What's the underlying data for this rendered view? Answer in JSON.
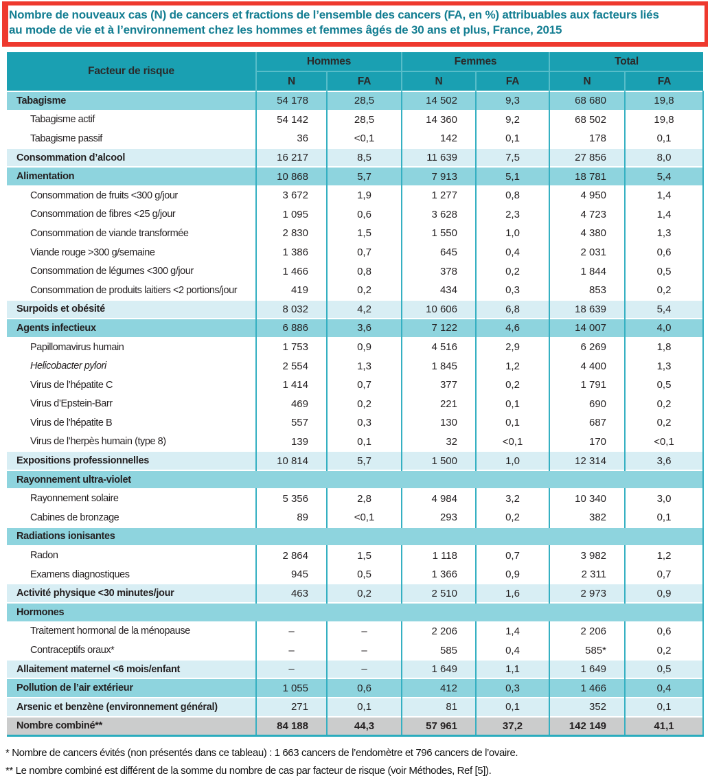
{
  "title": {
    "lines": [
      "Nombre de nouveaux cas (N) de cancers et fractions de l’ensemble des cancers (FA, en %) attribuables aux facteurs liés",
      "au mode de vie et à l’environnement chez les hommes et femmes âgés de 30 ans et plus, France, 2015"
    ]
  },
  "table": {
    "header": {
      "factor_label": "Facteur de risque",
      "groups": [
        "Hommes",
        "Femmes",
        "Total"
      ],
      "subcols": [
        "N",
        "FA"
      ]
    },
    "rows": [
      {
        "label": "Tabagisme",
        "type": "category",
        "shade": "dark",
        "values": [
          "54 178",
          "28,5",
          "14 502",
          "9,3",
          "68 680",
          "19,8"
        ]
      },
      {
        "label": "Tabagisme actif",
        "type": "sub",
        "shade": "white",
        "values": [
          "54 142",
          "28,5",
          "14 360",
          "9,2",
          "68 502",
          "19,8"
        ]
      },
      {
        "label": "Tabagisme passif",
        "type": "sub",
        "shade": "white",
        "values": [
          "36",
          "<0,1",
          "142",
          "0,1",
          "178",
          "0,1"
        ]
      },
      {
        "label": "Consommation d’alcool",
        "type": "category",
        "shade": "light",
        "values": [
          "16 217",
          "8,5",
          "11 639",
          "7,5",
          "27 856",
          "8,0"
        ]
      },
      {
        "label": "Alimentation",
        "type": "category",
        "shade": "dark",
        "values": [
          "10 868",
          "5,7",
          "7 913",
          "5,1",
          "18 781",
          "5,4"
        ]
      },
      {
        "label": "Consommation de fruits <300 g/jour",
        "type": "sub",
        "shade": "white",
        "values": [
          "3 672",
          "1,9",
          "1 277",
          "0,8",
          "4 950",
          "1,4"
        ]
      },
      {
        "label": "Consommation de fibres <25 g/jour",
        "type": "sub",
        "shade": "white",
        "values": [
          "1 095",
          "0,6",
          "3 628",
          "2,3",
          "4 723",
          "1,4"
        ]
      },
      {
        "label": "Consommation de viande transformée",
        "type": "sub",
        "shade": "white",
        "values": [
          "2 830",
          "1,5",
          "1 550",
          "1,0",
          "4 380",
          "1,3"
        ]
      },
      {
        "label": "Viande rouge >300 g/semaine",
        "type": "sub",
        "shade": "white",
        "values": [
          "1 386",
          "0,7",
          "645",
          "0,4",
          "2 031",
          "0,6"
        ]
      },
      {
        "label": "Consommation de légumes <300 g/jour",
        "type": "sub",
        "shade": "white",
        "values": [
          "1 466",
          "0,8",
          "378",
          "0,2",
          "1 844",
          "0,5"
        ]
      },
      {
        "label": "Consommation de produits laitiers <2 portions/jour",
        "type": "sub",
        "shade": "white",
        "values": [
          "419",
          "0,2",
          "434",
          "0,3",
          "853",
          "0,2"
        ]
      },
      {
        "label": "Surpoids et obésité",
        "type": "category",
        "shade": "light",
        "values": [
          "8 032",
          "4,2",
          "10 606",
          "6,8",
          "18 639",
          "5,4"
        ]
      },
      {
        "label": "Agents infectieux",
        "type": "category",
        "shade": "dark",
        "values": [
          "6 886",
          "3,6",
          "7 122",
          "4,6",
          "14 007",
          "4,0"
        ]
      },
      {
        "label": "Papillomavirus humain",
        "type": "sub",
        "shade": "white",
        "values": [
          "1 753",
          "0,9",
          "4 516",
          "2,9",
          "6 269",
          "1,8"
        ]
      },
      {
        "label": "Helicobacter pylori",
        "type": "sub",
        "shade": "white",
        "italic": true,
        "values": [
          "2 554",
          "1,3",
          "1 845",
          "1,2",
          "4 400",
          "1,3"
        ]
      },
      {
        "label": "Virus de l’hépatite C",
        "type": "sub",
        "shade": "white",
        "values": [
          "1 414",
          "0,7",
          "377",
          "0,2",
          "1 791",
          "0,5"
        ]
      },
      {
        "label": "Virus d’Epstein-Barr",
        "type": "sub",
        "shade": "white",
        "values": [
          "469",
          "0,2",
          "221",
          "0,1",
          "690",
          "0,2"
        ]
      },
      {
        "label": "Virus de l’hépatite B",
        "type": "sub",
        "shade": "white",
        "values": [
          "557",
          "0,3",
          "130",
          "0,1",
          "687",
          "0,2"
        ]
      },
      {
        "label": "Virus de l’herpès humain (type 8)",
        "type": "sub",
        "shade": "white",
        "values": [
          "139",
          "0,1",
          "32",
          "<0,1",
          "170",
          "<0,1"
        ]
      },
      {
        "label": "Expositions professionnelles",
        "type": "category",
        "shade": "light",
        "values": [
          "10 814",
          "5,7",
          "1 500",
          "1,0",
          "12 314",
          "3,6"
        ]
      },
      {
        "label": "Rayonnement ultra-violet",
        "type": "section",
        "shade": "dark"
      },
      {
        "label": "Rayonnement solaire",
        "type": "sub",
        "shade": "white",
        "values": [
          "5 356",
          "2,8",
          "4 984",
          "3,2",
          "10 340",
          "3,0"
        ]
      },
      {
        "label": "Cabines de bronzage",
        "type": "sub",
        "shade": "white",
        "values": [
          "89",
          "<0,1",
          "293",
          "0,2",
          "382",
          "0,1"
        ]
      },
      {
        "label": "Radiations ionisantes",
        "type": "section",
        "shade": "dark"
      },
      {
        "label": "Radon",
        "type": "sub",
        "shade": "white",
        "values": [
          "2 864",
          "1,5",
          "1 118",
          "0,7",
          "3 982",
          "1,2"
        ]
      },
      {
        "label": "Examens diagnostiques",
        "type": "sub",
        "shade": "white",
        "values": [
          "945",
          "0,5",
          "1 366",
          "0,9",
          "2 311",
          "0,7"
        ]
      },
      {
        "label": "Activité physique <30 minutes/jour",
        "type": "category",
        "shade": "light",
        "values": [
          "463",
          "0,2",
          "2 510",
          "1,6",
          "2 973",
          "0,9"
        ]
      },
      {
        "label": "Hormones",
        "type": "section",
        "shade": "dark"
      },
      {
        "label": "Traitement hormonal de la ménopause",
        "type": "sub",
        "shade": "white",
        "values": [
          "–",
          "–",
          "2 206",
          "1,4",
          "2 206",
          "0,6"
        ]
      },
      {
        "label": "Contraceptifs oraux*",
        "type": "sub",
        "shade": "white",
        "values": [
          "–",
          "–",
          "585",
          "0,4",
          "585*",
          "0,2"
        ]
      },
      {
        "label": "Allaitement maternel <6 mois/enfant",
        "type": "category",
        "shade": "light",
        "values": [
          "–",
          "–",
          "1 649",
          "1,1",
          "1 649",
          "0,5"
        ]
      },
      {
        "label": "Pollution de l’air extérieur",
        "type": "category",
        "shade": "dark",
        "values": [
          "1 055",
          "0,6",
          "412",
          "0,3",
          "1 466",
          "0,4"
        ]
      },
      {
        "label": "Arsenic et benzène (environnement général)",
        "type": "category",
        "shade": "light",
        "values": [
          "271",
          "0,1",
          "81",
          "0,1",
          "352",
          "0,1"
        ]
      },
      {
        "label": "Nombre combiné**",
        "type": "total",
        "shade": "gray",
        "values": [
          "84 188",
          "44,3",
          "57 961",
          "37,2",
          "142 149",
          "41,1"
        ]
      }
    ]
  },
  "footnotes": [
    "* Nombre de cancers évités (non présentés dans ce tableau) : 1 663 cancers de l’endomètre et 796 cancers de l’ovaire.",
    "** Le nombre combiné est différent de la somme du nombre de cas par facteur de risque (voir Méthodes, Ref [5])."
  ],
  "colors": {
    "header_teal": "#1aa0b2",
    "band_dark": "#8ed4de",
    "band_light": "#d8eef4",
    "total_gray": "#cbcccc",
    "grid_teal": "#35b0c2",
    "header_separator": "#57bdc9",
    "title_text": "#147e92",
    "frame_red": "#ee392e",
    "body_text": "#231f20"
  }
}
